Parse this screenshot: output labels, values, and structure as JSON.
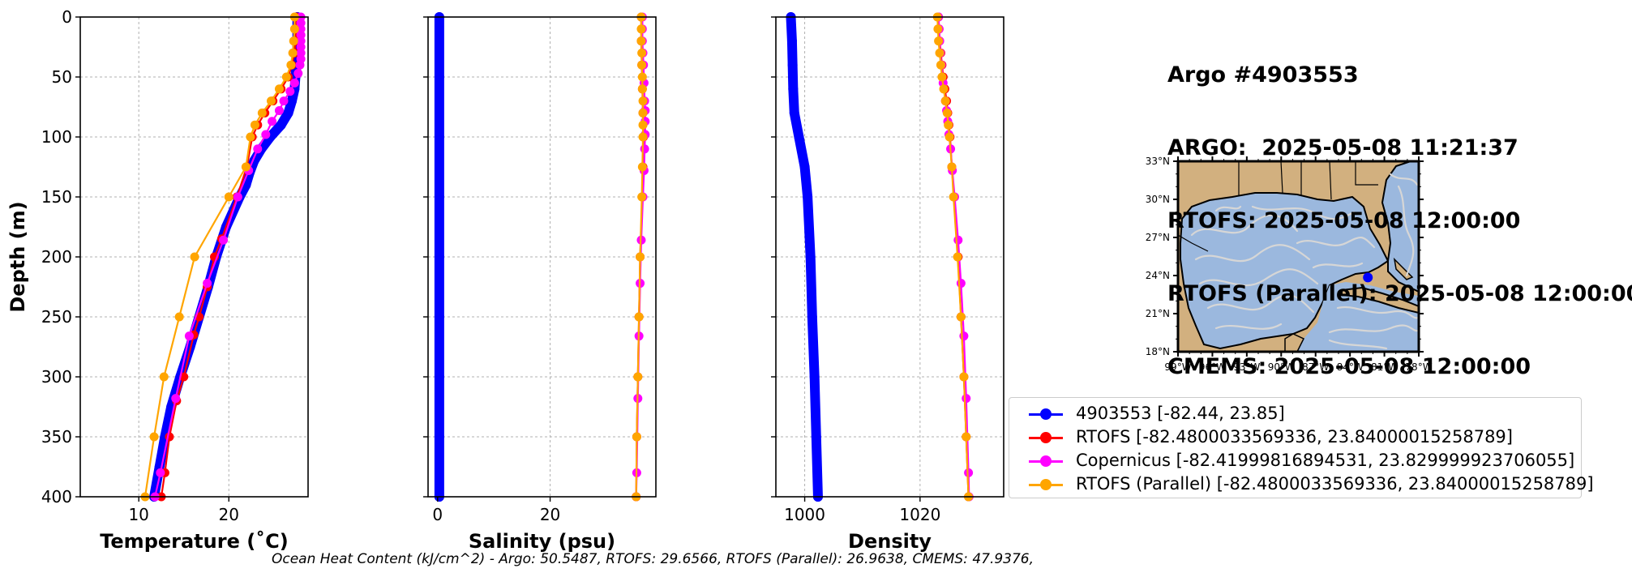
{
  "header": {
    "lines": [
      "Argo #4903553",
      "ARGO:  2025-05-08 11:21:37",
      "RTOFS: 2025-05-08 12:00:00",
      "RTOFS (Parallel): 2025-05-08 12:00:00",
      "CMEMS: 2025-05-08 12:00:00"
    ]
  },
  "footer": {
    "text": "Ocean Heat Content (kJ/cm^2) - Argo: 50.5487,  RTOFS: 29.6566,  RTOFS (Parallel): 26.9638,  CMEMS: 47.9376,"
  },
  "legend": {
    "items": [
      {
        "label": "4903553 [-82.44, 23.85]",
        "color": "#0000ff"
      },
      {
        "label": "RTOFS [-82.4800033569336, 23.84000015258789]",
        "color": "#ff0000"
      },
      {
        "label": "Copernicus [-82.41999816894531, 23.829999923706055]",
        "color": "#ff00ff"
      },
      {
        "label": "RTOFS (Parallel) [-82.4800033569336, 23.84000015258789]",
        "color": "#ffa500"
      }
    ]
  },
  "colors": {
    "argo": "#0000ff",
    "rtofs": "#ff0000",
    "copernicus": "#ff00ff",
    "rtofs_parallel": "#ffa500",
    "land": "#d2b07f",
    "ocean": "#9bb8de",
    "stream": "#d6d6d6"
  },
  "map": {
    "lat_ticks": [
      "33°N",
      "30°N",
      "27°N",
      "24°N",
      "21°N",
      "18°N"
    ],
    "lon_ticks": [
      "99°W",
      "96°W",
      "93°W",
      "90°W",
      "87°W",
      "84°W",
      "81°W",
      "78°W"
    ],
    "extent": {
      "lon": [
        -99,
        -78
      ],
      "lat": [
        18,
        33
      ]
    },
    "float_position": {
      "lon": -82.44,
      "lat": 23.85
    }
  },
  "chart_data": [
    {
      "type": "line",
      "xlabel": "Temperature (˚C)",
      "ylabel": "Depth (m)",
      "xlim": [
        3.5,
        28.8
      ],
      "ylim": [
        400,
        0
      ],
      "xticks": [
        "10",
        "20"
      ],
      "yticks": [
        "0",
        "50",
        "100",
        "150",
        "200",
        "250",
        "300",
        "350",
        "400"
      ],
      "grid": true,
      "series": [
        {
          "name": "4903553",
          "color": "#0000ff",
          "depth": [
            0,
            10,
            20,
            30,
            40,
            50,
            60,
            70,
            80,
            90,
            100,
            110,
            120,
            130,
            140,
            150,
            175,
            200,
            225,
            250,
            275,
            300,
            325,
            350,
            375,
            400
          ],
          "values": [
            27.6,
            27.6,
            27.6,
            27.6,
            27.5,
            27.4,
            27.3,
            27.0,
            26.6,
            25.8,
            24.6,
            23.6,
            22.8,
            22.3,
            21.9,
            21.2,
            19.7,
            18.6,
            17.7,
            16.7,
            15.7,
            14.6,
            13.6,
            12.9,
            12.3,
            11.7
          ]
        },
        {
          "name": "RTOFS",
          "color": "#ff0000",
          "depth": [
            0,
            10,
            20,
            30,
            40,
            50,
            60,
            70,
            80,
            90,
            100,
            125,
            150,
            185,
            200,
            225,
            250,
            265,
            300,
            320,
            350,
            380,
            400
          ],
          "values": [
            27.5,
            27.5,
            27.4,
            27.3,
            27.0,
            26.6,
            25.8,
            24.9,
            24.0,
            23.2,
            22.6,
            22.0,
            20.9,
            19.2,
            18.4,
            17.6,
            16.7,
            16.1,
            15.0,
            14.2,
            13.4,
            12.9,
            12.5
          ]
        },
        {
          "name": "Copernicus",
          "color": "#ff00ff",
          "depth": [
            0,
            5,
            10,
            15,
            20,
            25,
            30,
            35,
            40,
            47,
            55,
            62,
            70,
            78,
            87,
            98,
            110,
            128,
            150,
            186,
            222,
            266,
            318,
            380,
            400
          ],
          "values": [
            28.0,
            28.0,
            28.0,
            28.0,
            28.0,
            28.0,
            28.0,
            28.0,
            27.9,
            27.7,
            27.3,
            26.8,
            26.1,
            25.6,
            24.8,
            24.1,
            23.2,
            22.2,
            21.0,
            19.4,
            17.6,
            15.6,
            14.1,
            12.4,
            11.8
          ]
        },
        {
          "name": "RTOFS (Parallel)",
          "color": "#ffa500",
          "depth": [
            0,
            10,
            20,
            30,
            40,
            50,
            60,
            70,
            80,
            90,
            100,
            125,
            150,
            200,
            250,
            300,
            350,
            400
          ],
          "values": [
            27.3,
            27.3,
            27.2,
            27.1,
            26.9,
            26.4,
            25.6,
            24.7,
            23.7,
            22.9,
            22.4,
            21.9,
            20.0,
            16.2,
            14.5,
            12.8,
            11.7,
            10.7
          ]
        }
      ]
    },
    {
      "type": "line",
      "xlabel": "Salinity (psu)",
      "ylabel": "",
      "xlim": [
        -1.7,
        38.8
      ],
      "ylim": [
        400,
        0
      ],
      "xticks": [
        "0",
        "20"
      ],
      "grid": true,
      "series": [
        {
          "name": "4903553",
          "color": "#0000ff",
          "depth": [
            0,
            50,
            100,
            150,
            200,
            250,
            300,
            350,
            400
          ],
          "values": [
            0.3,
            0.3,
            0.3,
            0.3,
            0.3,
            0.3,
            0.3,
            0.3,
            0.3
          ]
        },
        {
          "name": "RTOFS",
          "color": "#ff0000",
          "depth": [
            0,
            20,
            40,
            60,
            80,
            100,
            125,
            150,
            200,
            250,
            300,
            350,
            400
          ],
          "values": [
            36.2,
            36.2,
            36.3,
            36.4,
            36.5,
            36.6,
            36.5,
            36.4,
            36.0,
            35.8,
            35.6,
            35.4,
            35.3
          ]
        },
        {
          "name": "Copernicus",
          "color": "#ff00ff",
          "depth": [
            0,
            10,
            20,
            30,
            40,
            55,
            70,
            78,
            87,
            98,
            110,
            128,
            150,
            186,
            222,
            266,
            318,
            380,
            400
          ],
          "values": [
            36.4,
            36.4,
            36.4,
            36.5,
            36.6,
            36.7,
            36.8,
            36.9,
            36.9,
            36.9,
            36.8,
            36.7,
            36.5,
            36.2,
            36.0,
            35.8,
            35.6,
            35.4,
            35.3
          ]
        },
        {
          "name": "RTOFS (Parallel)",
          "color": "#ffa500",
          "depth": [
            0,
            10,
            20,
            30,
            40,
            50,
            60,
            70,
            80,
            90,
            100,
            125,
            150,
            200,
            250,
            300,
            350,
            400
          ],
          "values": [
            36.2,
            36.2,
            36.2,
            36.3,
            36.3,
            36.4,
            36.4,
            36.5,
            36.5,
            36.5,
            36.5,
            36.4,
            36.3,
            36.0,
            35.8,
            35.6,
            35.4,
            35.3
          ]
        }
      ]
    },
    {
      "type": "line",
      "xlabel": "Density",
      "ylabel": "",
      "xlim": [
        995,
        1034.5
      ],
      "ylim": [
        400,
        0
      ],
      "xticks": [
        "1000",
        "1020"
      ],
      "grid": true,
      "series": [
        {
          "name": "4903553",
          "color": "#0000ff",
          "depth": [
            0,
            20,
            40,
            60,
            80,
            100,
            125,
            150,
            200,
            250,
            300,
            350,
            400
          ],
          "values": [
            997.6,
            997.8,
            997.9,
            998.0,
            998.2,
            999.0,
            1000.0,
            1000.5,
            1001.0,
            1001.3,
            1001.7,
            1002.0,
            1002.3
          ]
        },
        {
          "name": "RTOFS",
          "color": "#ff0000",
          "depth": [
            0,
            10,
            20,
            30,
            40,
            50,
            60,
            70,
            80,
            90,
            100,
            125,
            150,
            200,
            250,
            300,
            350,
            400
          ],
          "values": [
            1023.2,
            1023.3,
            1023.4,
            1023.6,
            1023.8,
            1024.0,
            1024.3,
            1024.6,
            1024.8,
            1025.0,
            1025.2,
            1025.5,
            1025.9,
            1026.6,
            1027.1,
            1027.6,
            1028.0,
            1028.4
          ]
        },
        {
          "name": "Copernicus",
          "color": "#ff00ff",
          "depth": [
            0,
            10,
            20,
            30,
            40,
            55,
            70,
            78,
            87,
            98,
            110,
            128,
            150,
            186,
            222,
            266,
            318,
            380,
            400
          ],
          "values": [
            1023.2,
            1023.3,
            1023.4,
            1023.5,
            1023.7,
            1024.0,
            1024.4,
            1024.6,
            1024.8,
            1025.0,
            1025.3,
            1025.6,
            1026.0,
            1026.6,
            1027.1,
            1027.6,
            1028.0,
            1028.4,
            1028.5
          ]
        },
        {
          "name": "RTOFS (Parallel)",
          "color": "#ffa500",
          "depth": [
            0,
            10,
            20,
            30,
            40,
            50,
            60,
            70,
            80,
            90,
            100,
            125,
            150,
            200,
            250,
            300,
            350,
            400
          ],
          "values": [
            1023.0,
            1023.1,
            1023.2,
            1023.4,
            1023.6,
            1023.8,
            1024.1,
            1024.4,
            1024.7,
            1024.9,
            1025.1,
            1025.5,
            1025.8,
            1026.5,
            1027.1,
            1027.6,
            1028.0,
            1028.4
          ]
        }
      ]
    }
  ]
}
